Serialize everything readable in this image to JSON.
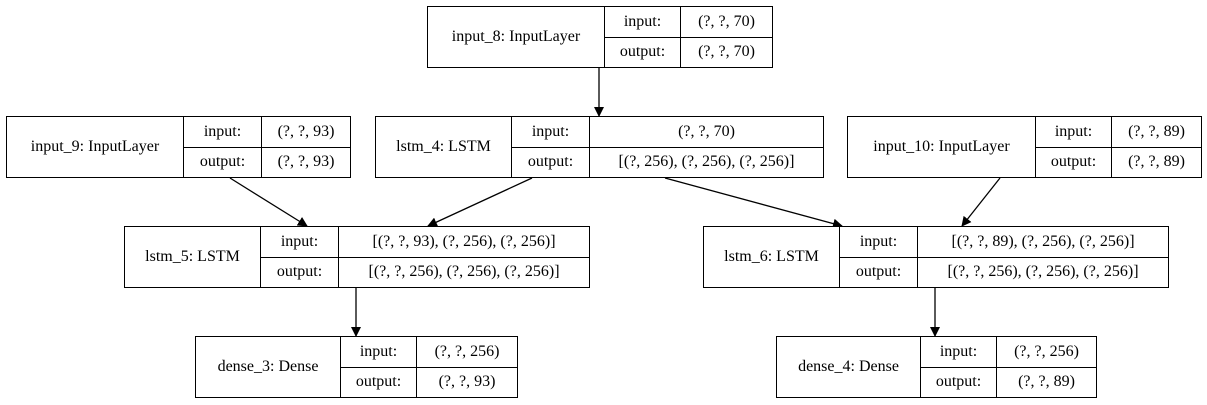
{
  "nodes": {
    "input_8": {
      "name": "input_8: InputLayer",
      "input_label": "input:",
      "output_label": "output:",
      "input_value": "(?, ?, 70)",
      "output_value": "(?, ?, 70)"
    },
    "input_9": {
      "name": "input_9: InputLayer",
      "input_label": "input:",
      "output_label": "output:",
      "input_value": "(?, ?, 93)",
      "output_value": "(?, ?, 93)"
    },
    "lstm_4": {
      "name": "lstm_4: LSTM",
      "input_label": "input:",
      "output_label": "output:",
      "input_value": "(?, ?, 70)",
      "output_value": "[(?, 256), (?, 256), (?, 256)]"
    },
    "input_10": {
      "name": "input_10: InputLayer",
      "input_label": "input:",
      "output_label": "output:",
      "input_value": "(?, ?, 89)",
      "output_value": "(?, ?, 89)"
    },
    "lstm_5": {
      "name": "lstm_5: LSTM",
      "input_label": "input:",
      "output_label": "output:",
      "input_value": "[(?, ?, 93), (?, 256), (?, 256)]",
      "output_value": "[(?, ?, 256), (?, 256), (?, 256)]"
    },
    "lstm_6": {
      "name": "lstm_6: LSTM",
      "input_label": "input:",
      "output_label": "output:",
      "input_value": "[(?, ?, 89), (?, 256), (?, 256)]",
      "output_value": "[(?, ?, 256), (?, 256), (?, 256)]"
    },
    "dense_3": {
      "name": "dense_3: Dense",
      "input_label": "input:",
      "output_label": "output:",
      "input_value": "(?, ?, 256)",
      "output_value": "(?, ?, 93)"
    },
    "dense_4": {
      "name": "dense_4: Dense",
      "input_label": "input:",
      "output_label": "output:",
      "input_value": "(?, ?, 256)",
      "output_value": "(?, ?, 89)"
    }
  },
  "edges": [
    {
      "from": "input_8",
      "to": "lstm_4"
    },
    {
      "from": "input_9",
      "to": "lstm_5"
    },
    {
      "from": "lstm_4",
      "to": "lstm_5"
    },
    {
      "from": "lstm_4",
      "to": "lstm_6"
    },
    {
      "from": "input_10",
      "to": "lstm_6"
    },
    {
      "from": "lstm_5",
      "to": "dense_3"
    },
    {
      "from": "lstm_6",
      "to": "dense_4"
    }
  ]
}
